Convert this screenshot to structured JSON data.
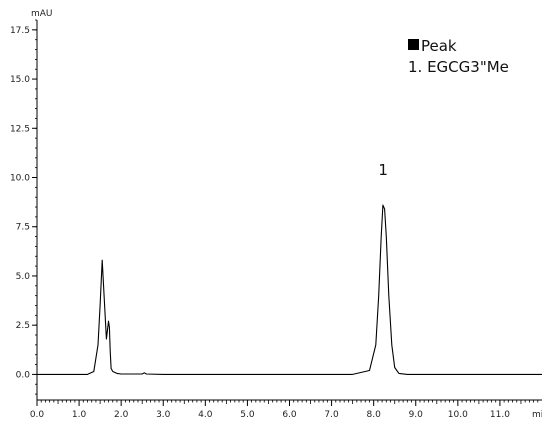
{
  "chart_data": {
    "type": "line",
    "y_unit": "mAU",
    "x_unit": "min",
    "xlim": [
      0.0,
      12.0
    ],
    "ylim": [
      -1.3,
      18.0
    ],
    "x_ticks": [
      "0.0",
      "1.0",
      "2.0",
      "3.0",
      "4.0",
      "5.0",
      "6.0",
      "7.0",
      "8.0",
      "9.0",
      "10.0",
      "11.0"
    ],
    "x_tick_values": [
      0,
      1,
      2,
      3,
      4,
      5,
      6,
      7,
      8,
      9,
      10,
      11
    ],
    "y_ticks": [
      "0.0",
      "2.5",
      "5.0",
      "7.5",
      "10.0",
      "12.5",
      "15.0",
      "17.5"
    ],
    "y_tick_values": [
      0,
      2.5,
      5,
      7.5,
      10,
      12.5,
      15,
      17.5
    ],
    "legend": {
      "title": "Peak",
      "entries": [
        "1. EGCG3\"Me"
      ]
    },
    "peak_labels": [
      {
        "text": "1",
        "x": 8.25,
        "y": 8.6
      }
    ],
    "series": [
      {
        "x": [
          0.0,
          1.2,
          1.35,
          1.45,
          1.5,
          1.55,
          1.6,
          1.65,
          1.7,
          1.72,
          1.74,
          1.76,
          1.8,
          1.9,
          2.0,
          2.5,
          2.55,
          2.6,
          3.0,
          5.0,
          7.5,
          7.9,
          8.05,
          8.12,
          8.18,
          8.22,
          8.26,
          8.3,
          8.36,
          8.43,
          8.5,
          8.6,
          8.8,
          9.5,
          12.0
        ],
        "y": [
          0.0,
          0.0,
          0.15,
          1.5,
          3.5,
          5.8,
          3.8,
          1.8,
          2.7,
          2.4,
          1.2,
          0.3,
          0.15,
          0.05,
          0.02,
          0.02,
          0.08,
          0.02,
          0.0,
          0.0,
          0.0,
          0.2,
          1.5,
          4.0,
          7.0,
          8.6,
          8.4,
          7.0,
          4.0,
          1.5,
          0.35,
          0.05,
          0.0,
          0.0,
          0.0
        ]
      }
    ]
  }
}
